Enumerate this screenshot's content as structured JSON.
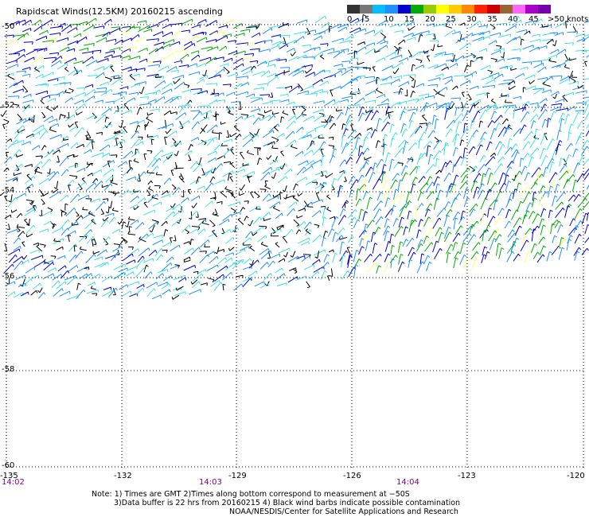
{
  "title": "Rapidscat Winds(12.5KM) 20160215 ascending",
  "legend": {
    "units": "knots",
    "labels": [
      "0",
      "5",
      "10",
      "15",
      "20",
      "25",
      "30",
      "35",
      "40",
      "45",
      ">50"
    ],
    "colors": [
      "#333333",
      "#777777",
      "#00bfff",
      "#1e90ff",
      "#0000cd",
      "#00aa00",
      "#99cc00",
      "#ffff00",
      "#ffcc00",
      "#ff8800",
      "#ff2200",
      "#cc0000",
      "#996633",
      "#ff66ff",
      "#aa00cc",
      "#7700aa"
    ]
  },
  "map": {
    "lon_ticks": [
      "-135",
      "-132",
      "-129",
      "-126",
      "-123",
      "-120"
    ],
    "lat_ticks": [
      "-50",
      "-52",
      "-54",
      "-56",
      "-58",
      "-60"
    ],
    "times": [
      "14:02",
      "14:03",
      "14:04"
    ],
    "barb_colors": {
      "contaminated": "#000000",
      "light": "#40e0e0",
      "moderate": "#1e90ff",
      "strong": "#0000cd",
      "high": "#00aa00",
      "very_high": "#ffff66"
    }
  },
  "notes": {
    "line1": "Note: 1) Times are GMT 2)Times along bottom correspond to measurement at −50S",
    "line2": "3)Data buffer is 22 hrs from 20160215 4) Black wind barbs indicate possible contamination",
    "line3": "NOAA/NESDIS/Center for Satellite Applications and Research"
  }
}
